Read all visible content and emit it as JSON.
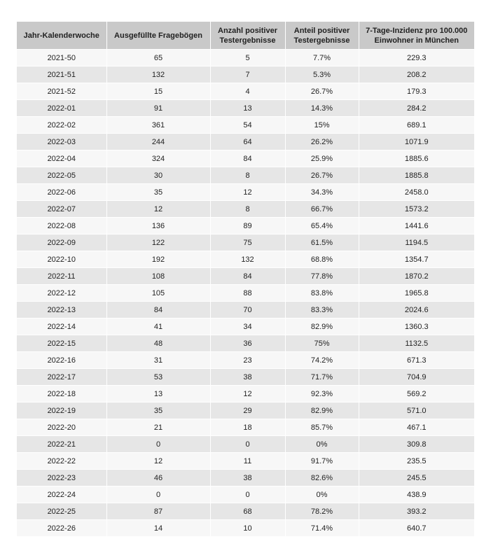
{
  "table": {
    "header": [
      "Jahr-Kalenderwoche",
      "Ausgefüllte Fragebögen",
      "Anzahl positiver Testergebnisse",
      "Anteil positiver Testergebnisse",
      "7-Tage-Inzidenz pro 100.000 Einwohner in München"
    ],
    "rows": [
      [
        "2021-50",
        "65",
        "5",
        "7.7%",
        "229.3"
      ],
      [
        "2021-51",
        "132",
        "7",
        "5.3%",
        "208.2"
      ],
      [
        "2021-52",
        "15",
        "4",
        "26.7%",
        "179.3"
      ],
      [
        "2022-01",
        "91",
        "13",
        "14.3%",
        "284.2"
      ],
      [
        "2022-02",
        "361",
        "54",
        "15%",
        "689.1"
      ],
      [
        "2022-03",
        "244",
        "64",
        "26.2%",
        "1071.9"
      ],
      [
        "2022-04",
        "324",
        "84",
        "25.9%",
        "1885.6"
      ],
      [
        "2022-05",
        "30",
        "8",
        "26.7%",
        "1885.8"
      ],
      [
        "2022-06",
        "35",
        "12",
        "34.3%",
        "2458.0"
      ],
      [
        "2022-07",
        "12",
        "8",
        "66.7%",
        "1573.2"
      ],
      [
        "2022-08",
        "136",
        "89",
        "65.4%",
        "1441.6"
      ],
      [
        "2022-09",
        "122",
        "75",
        "61.5%",
        "1194.5"
      ],
      [
        "2022-10",
        "192",
        "132",
        "68.8%",
        "1354.7"
      ],
      [
        "2022-11",
        "108",
        "84",
        "77.8%",
        "1870.2"
      ],
      [
        "2022-12",
        "105",
        "88",
        "83.8%",
        "1965.8"
      ],
      [
        "2022-13",
        "84",
        "70",
        "83.3%",
        "2024.6"
      ],
      [
        "2022-14",
        "41",
        "34",
        "82.9%",
        "1360.3"
      ],
      [
        "2022-15",
        "48",
        "36",
        "75%",
        "1132.5"
      ],
      [
        "2022-16",
        "31",
        "23",
        "74.2%",
        "671.3"
      ],
      [
        "2022-17",
        "53",
        "38",
        "71.7%",
        "704.9"
      ],
      [
        "2022-18",
        "13",
        "12",
        "92.3%",
        "569.2"
      ],
      [
        "2022-19",
        "35",
        "29",
        "82.9%",
        "571.0"
      ],
      [
        "2022-20",
        "21",
        "18",
        "85.7%",
        "467.1"
      ],
      [
        "2022-21",
        "0",
        "0",
        "0%",
        "309.8"
      ],
      [
        "2022-22",
        "12",
        "11",
        "91.7%",
        "235.5"
      ],
      [
        "2022-23",
        "46",
        "38",
        "82.6%",
        "245.5"
      ],
      [
        "2022-24",
        "0",
        "0",
        "0%",
        "438.9"
      ],
      [
        "2022-25",
        "87",
        "68",
        "78.2%",
        "393.2"
      ],
      [
        "2022-26",
        "14",
        "10",
        "71.4%",
        "640.7"
      ]
    ]
  }
}
